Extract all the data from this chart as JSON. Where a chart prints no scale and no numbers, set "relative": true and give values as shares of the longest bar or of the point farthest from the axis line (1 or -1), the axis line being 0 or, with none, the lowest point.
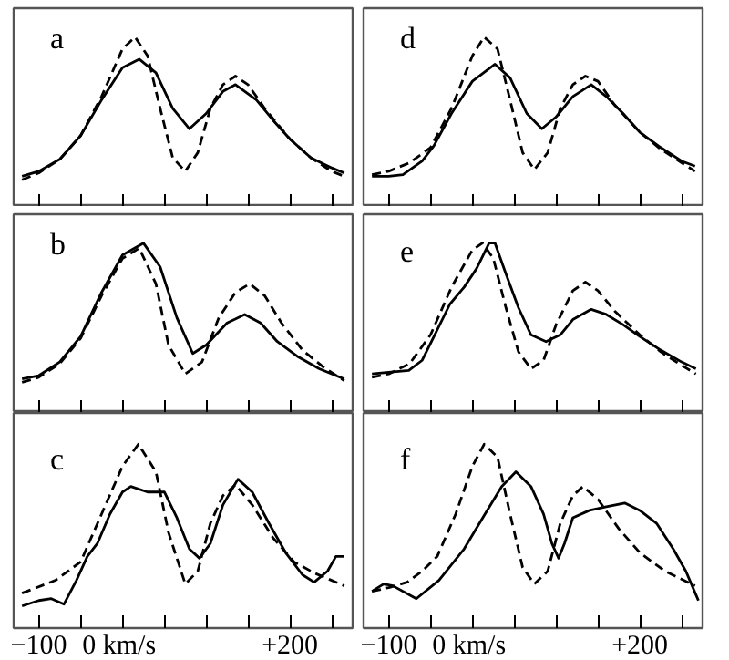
{
  "chart_data": [
    {
      "type": "line",
      "relative": true,
      "annotations": [
        "a"
      ],
      "xlim": [
        -130,
        275
      ],
      "xticks": [
        {
          "value": -100,
          "label": null
        },
        {
          "value": -50,
          "label": null
        },
        {
          "value": 0,
          "label": null
        },
        {
          "value": 50,
          "label": null
        },
        {
          "value": 100,
          "label": null
        },
        {
          "value": 150,
          "label": null
        },
        {
          "value": 200,
          "label": null
        },
        {
          "value": 250,
          "label": null
        }
      ],
      "tick_labels": false,
      "grid": false,
      "series": [
        {
          "color": "#000000",
          "line_style": "solid",
          "x": [
            -120,
            -100,
            -75,
            -50,
            -25,
            0,
            20,
            40,
            60,
            80,
            100,
            120,
            135,
            160,
            180,
            200,
            225,
            250,
            265
          ],
          "values": [
            0.18,
            0.21,
            0.28,
            0.42,
            0.63,
            0.82,
            0.87,
            0.79,
            0.58,
            0.46,
            0.55,
            0.68,
            0.72,
            0.63,
            0.51,
            0.4,
            0.29,
            0.23,
            0.2
          ]
        },
        {
          "color": "#000000",
          "line_style": "dashed",
          "x": [
            -120,
            -100,
            -75,
            -50,
            -25,
            0,
            15,
            30,
            45,
            60,
            75,
            90,
            105,
            120,
            135,
            150,
            170,
            200,
            225,
            250,
            265
          ],
          "values": [
            0.16,
            0.2,
            0.28,
            0.42,
            0.65,
            0.93,
            1.0,
            0.89,
            0.58,
            0.29,
            0.21,
            0.32,
            0.58,
            0.72,
            0.77,
            0.72,
            0.58,
            0.4,
            0.29,
            0.21,
            0.18
          ]
        }
      ]
    },
    {
      "type": "line",
      "relative": true,
      "annotations": [
        "d"
      ],
      "xlim": [
        -130,
        275
      ],
      "xticks": [
        {
          "value": -100,
          "label": null
        },
        {
          "value": -50,
          "label": null
        },
        {
          "value": 0,
          "label": null
        },
        {
          "value": 50,
          "label": null
        },
        {
          "value": 100,
          "label": null
        },
        {
          "value": 150,
          "label": null
        },
        {
          "value": 200,
          "label": null
        },
        {
          "value": 250,
          "label": null
        }
      ],
      "tick_labels": false,
      "grid": false,
      "series": [
        {
          "color": "#000000",
          "line_style": "solid",
          "x": [
            -120,
            -100,
            -83,
            -60,
            -46,
            -25,
            0,
            27,
            45,
            65,
            83,
            100,
            120,
            142,
            160,
            180,
            200,
            225,
            250,
            266
          ],
          "values": [
            0.18,
            0.18,
            0.19,
            0.27,
            0.36,
            0.55,
            0.74,
            0.84,
            0.76,
            0.55,
            0.46,
            0.53,
            0.65,
            0.72,
            0.65,
            0.55,
            0.44,
            0.35,
            0.27,
            0.24
          ]
        },
        {
          "color": "#000000",
          "line_style": "dashed",
          "x": [
            -120,
            -100,
            -75,
            -50,
            -25,
            0,
            14,
            30,
            45,
            60,
            74,
            90,
            105,
            120,
            135,
            150,
            170,
            200,
            225,
            250,
            266
          ],
          "values": [
            0.19,
            0.21,
            0.26,
            0.35,
            0.58,
            0.89,
            1.0,
            0.93,
            0.63,
            0.32,
            0.22,
            0.32,
            0.58,
            0.72,
            0.77,
            0.74,
            0.6,
            0.44,
            0.34,
            0.26,
            0.21
          ]
        }
      ]
    },
    {
      "type": "line",
      "relative": true,
      "annotations": [
        "b"
      ],
      "xlim": [
        -130,
        275
      ],
      "xticks": [
        {
          "value": -100,
          "label": null
        },
        {
          "value": -50,
          "label": null
        },
        {
          "value": 0,
          "label": null
        },
        {
          "value": 50,
          "label": null
        },
        {
          "value": 100,
          "label": null
        },
        {
          "value": 150,
          "label": null
        },
        {
          "value": 200,
          "label": null
        },
        {
          "value": 250,
          "label": null
        }
      ],
      "tick_labels": false,
      "grid": false,
      "series": [
        {
          "color": "#000000",
          "line_style": "solid",
          "x": [
            -120,
            -100,
            -75,
            -50,
            -25,
            0,
            25,
            45,
            65,
            84,
            100,
            125,
            146,
            165,
            185,
            210,
            235,
            265
          ],
          "values": [
            0.2,
            0.22,
            0.3,
            0.45,
            0.71,
            0.93,
            1.0,
            0.86,
            0.56,
            0.35,
            0.4,
            0.53,
            0.58,
            0.53,
            0.42,
            0.33,
            0.26,
            0.2
          ]
        },
        {
          "color": "#000000",
          "line_style": "dashed",
          "x": [
            -120,
            -100,
            -75,
            -50,
            -25,
            0,
            20,
            40,
            55,
            75,
            95,
            115,
            135,
            152,
            170,
            190,
            215,
            240,
            265
          ],
          "values": [
            0.18,
            0.21,
            0.29,
            0.44,
            0.69,
            0.91,
            0.97,
            0.76,
            0.4,
            0.23,
            0.3,
            0.56,
            0.71,
            0.76,
            0.69,
            0.53,
            0.37,
            0.27,
            0.19
          ]
        }
      ]
    },
    {
      "type": "line",
      "relative": true,
      "annotations": [
        "e"
      ],
      "xlim": [
        -130,
        275
      ],
      "xticks": [
        {
          "value": -100,
          "label": null
        },
        {
          "value": -50,
          "label": null
        },
        {
          "value": 0,
          "label": null
        },
        {
          "value": 50,
          "label": null
        },
        {
          "value": 100,
          "label": null
        },
        {
          "value": 150,
          "label": null
        },
        {
          "value": 200,
          "label": null
        },
        {
          "value": 250,
          "label": null
        }
      ],
      "tick_labels": false,
      "grid": false,
      "series": [
        {
          "color": "#000000",
          "line_style": "solid",
          "x": [
            -120,
            -100,
            -76,
            -60,
            -45,
            -27,
            -10,
            5,
            20,
            27,
            40,
            55,
            70,
            88,
            105,
            120,
            142,
            160,
            180,
            200,
            225,
            250,
            267
          ],
          "values": [
            0.23,
            0.24,
            0.25,
            0.31,
            0.46,
            0.64,
            0.74,
            0.85,
            1.0,
            1.0,
            0.82,
            0.62,
            0.46,
            0.42,
            0.46,
            0.55,
            0.61,
            0.58,
            0.52,
            0.45,
            0.37,
            0.3,
            0.26
          ]
        },
        {
          "color": "#000000",
          "line_style": "dashed",
          "x": [
            -120,
            -100,
            -75,
            -50,
            -25,
            0,
            12,
            25,
            40,
            55,
            70,
            85,
            100,
            120,
            135,
            150,
            170,
            200,
            225,
            250,
            267
          ],
          "values": [
            0.21,
            0.23,
            0.29,
            0.46,
            0.74,
            0.96,
            1.0,
            0.91,
            0.62,
            0.36,
            0.26,
            0.31,
            0.52,
            0.72,
            0.77,
            0.72,
            0.6,
            0.46,
            0.36,
            0.28,
            0.23
          ]
        }
      ]
    },
    {
      "type": "line",
      "relative": true,
      "annotations": [
        "c"
      ],
      "xlim": [
        -130,
        275
      ],
      "xticks": [
        {
          "value": -100,
          "label": "−100"
        },
        {
          "value": -50,
          "label": null
        },
        {
          "value": 0,
          "label": "0  km/s"
        },
        {
          "value": 50,
          "label": null
        },
        {
          "value": 100,
          "label": null
        },
        {
          "value": 150,
          "label": null
        },
        {
          "value": 200,
          "label": "+200"
        },
        {
          "value": 250,
          "label": null
        }
      ],
      "tick_labels": "x",
      "grid": false,
      "series": [
        {
          "color": "#000000",
          "line_style": "solid",
          "x": [
            -120,
            -100,
            -85,
            -70,
            -55,
            -42,
            -30,
            -15,
            0,
            10,
            30,
            50,
            65,
            80,
            92,
            105,
            120,
            138,
            155,
            175,
            195,
            215,
            229,
            245,
            255,
            265
          ],
          "values": [
            0.12,
            0.15,
            0.16,
            0.13,
            0.26,
            0.39,
            0.46,
            0.62,
            0.74,
            0.77,
            0.74,
            0.74,
            0.6,
            0.43,
            0.38,
            0.46,
            0.67,
            0.81,
            0.74,
            0.57,
            0.41,
            0.29,
            0.25,
            0.31,
            0.39,
            0.39
          ]
        },
        {
          "color": "#000000",
          "line_style": "dashed",
          "x": [
            -120,
            -80,
            -50,
            -25,
            0,
            19,
            40,
            55,
            75,
            90,
            105,
            120,
            135,
            155,
            180,
            205,
            229,
            265
          ],
          "values": [
            0.19,
            0.26,
            0.36,
            0.62,
            0.88,
            1.0,
            0.85,
            0.52,
            0.24,
            0.31,
            0.57,
            0.72,
            0.78,
            0.67,
            0.49,
            0.36,
            0.3,
            0.23
          ]
        }
      ]
    },
    {
      "type": "line",
      "relative": true,
      "annotations": [
        "f"
      ],
      "xlim": [
        -130,
        275
      ],
      "xticks": [
        {
          "value": -100,
          "label": "−100"
        },
        {
          "value": -50,
          "label": null
        },
        {
          "value": 0,
          "label": "0  km/s"
        },
        {
          "value": 50,
          "label": null
        },
        {
          "value": 100,
          "label": null
        },
        {
          "value": 150,
          "label": null
        },
        {
          "value": 200,
          "label": "+200"
        },
        {
          "value": 250,
          "label": null
        }
      ],
      "tick_labels": "x",
      "grid": false,
      "series": [
        {
          "color": "#000000",
          "line_style": "solid",
          "x": [
            -120,
            -106,
            -95,
            -67,
            -40,
            -10,
            15,
            35,
            52,
            70,
            85,
            95,
            103,
            110,
            120,
            140,
            160,
            182,
            200,
            220,
            240,
            255,
            270
          ],
          "values": [
            0.2,
            0.24,
            0.23,
            0.16,
            0.26,
            0.43,
            0.62,
            0.77,
            0.85,
            0.77,
            0.62,
            0.46,
            0.38,
            0.46,
            0.6,
            0.64,
            0.66,
            0.68,
            0.64,
            0.57,
            0.43,
            0.31,
            0.15
          ]
        },
        {
          "color": "#000000",
          "line_style": "dashed",
          "x": [
            -120,
            -100,
            -78,
            -60,
            -42,
            -20,
            0,
            14,
            30,
            45,
            60,
            74,
            90,
            105,
            120,
            132,
            150,
            175,
            200,
            230,
            266
          ],
          "values": [
            0.2,
            0.22,
            0.25,
            0.31,
            0.39,
            0.62,
            0.88,
            1.0,
            0.93,
            0.62,
            0.33,
            0.24,
            0.31,
            0.57,
            0.72,
            0.77,
            0.7,
            0.54,
            0.41,
            0.31,
            0.23
          ]
        }
      ]
    }
  ]
}
